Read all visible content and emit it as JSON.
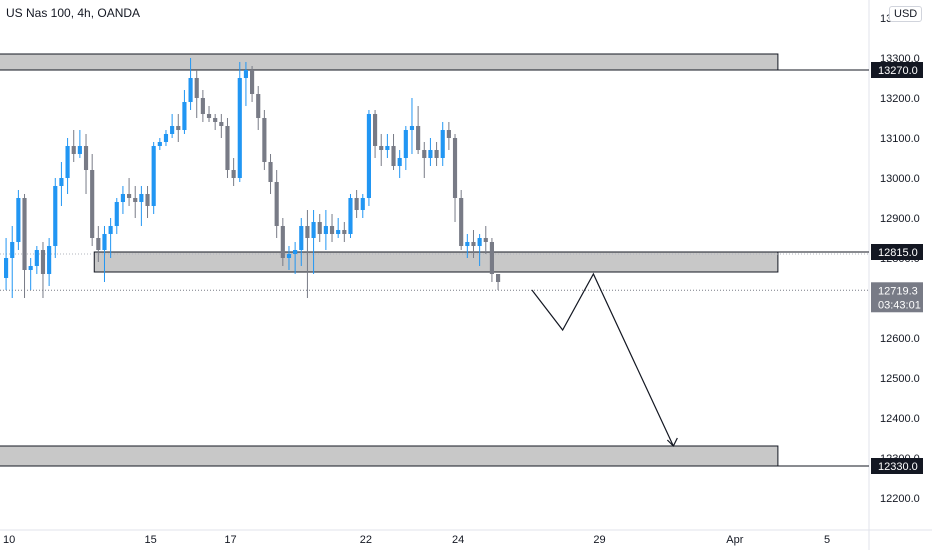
{
  "header": {
    "title": "US Nas 100, 4h, OANDA",
    "currency": "USD"
  },
  "colors": {
    "up": "#2196f3",
    "down": "#787b86",
    "zone_fill": "#c8c8c8",
    "zone_border": "#131722",
    "axis_text": "#131722",
    "last_price_bg": "#787b86"
  },
  "chart_data": {
    "type": "candlestick",
    "symbol": "US Nas 100",
    "interval": "4h",
    "source": "OANDA",
    "ylim": [
      12140,
      13440
    ],
    "y_ticks": [
      13400,
      13300,
      13200,
      13100,
      13000,
      12900,
      12800,
      12700,
      12600,
      12500,
      12400,
      12300,
      12200
    ],
    "y_tick_labels": [
      "13400.0",
      "13300.0",
      "13200.0",
      "13100.0",
      "13000.0",
      "12900.0",
      "12800.0",
      "12700.0",
      "12600.0",
      "12500.0",
      "12400.0",
      "12300.0",
      "12200.0"
    ],
    "x_ticks": [
      {
        "label": "10",
        "bar": 1
      },
      {
        "label": "15",
        "bar": 24
      },
      {
        "label": "17",
        "bar": 37
      },
      {
        "label": "22",
        "bar": 59
      },
      {
        "label": "24",
        "bar": 74
      },
      {
        "label": "29",
        "bar": 97
      },
      {
        "label": "Apr",
        "bar": 119
      },
      {
        "label": "5",
        "bar": 134
      }
    ],
    "candles": [
      [
        12750,
        12850,
        12720,
        12800
      ],
      [
        12800,
        12880,
        12700,
        12840
      ],
      [
        12840,
        12970,
        12820,
        12950
      ],
      [
        12950,
        12960,
        12700,
        12770
      ],
      [
        12770,
        12800,
        12720,
        12780
      ],
      [
        12780,
        12830,
        12760,
        12820
      ],
      [
        12820,
        12840,
        12700,
        12760
      ],
      [
        12760,
        12850,
        12730,
        12830
      ],
      [
        12830,
        13000,
        12800,
        12980
      ],
      [
        12980,
        13040,
        12930,
        13000
      ],
      [
        13000,
        13100,
        12960,
        13080
      ],
      [
        13080,
        13120,
        13040,
        13060
      ],
      [
        13060,
        13120,
        13050,
        13080
      ],
      [
        13080,
        13110,
        12960,
        13020
      ],
      [
        13020,
        13060,
        12830,
        12850
      ],
      [
        12850,
        12880,
        12790,
        12820
      ],
      [
        12820,
        12880,
        12740,
        12860
      ],
      [
        12860,
        12900,
        12800,
        12880
      ],
      [
        12880,
        12950,
        12860,
        12940
      ],
      [
        12940,
        12980,
        12910,
        12960
      ],
      [
        12960,
        13000,
        12930,
        12950
      ],
      [
        12950,
        12980,
        12900,
        12940
      ],
      [
        12940,
        12980,
        12880,
        12960
      ],
      [
        12960,
        12980,
        12900,
        12930
      ],
      [
        12930,
        13090,
        12910,
        13080
      ],
      [
        13080,
        13100,
        13070,
        13090
      ],
      [
        13090,
        13120,
        13080,
        13110
      ],
      [
        13110,
        13160,
        13100,
        13130
      ],
      [
        13130,
        13160,
        13090,
        13120
      ],
      [
        13120,
        13220,
        13110,
        13190
      ],
      [
        13190,
        13300,
        13170,
        13250
      ],
      [
        13250,
        13270,
        13150,
        13200
      ],
      [
        13200,
        13220,
        13140,
        13160
      ],
      [
        13160,
        13180,
        13140,
        13150
      ],
      [
        13150,
        13160,
        13120,
        13140
      ],
      [
        13140,
        13160,
        13100,
        13130
      ],
      [
        13130,
        13150,
        13000,
        13020
      ],
      [
        13020,
        13050,
        12980,
        13000
      ],
      [
        13000,
        13290,
        12990,
        13250
      ],
      [
        13250,
        13290,
        13180,
        13270
      ],
      [
        13270,
        13280,
        13190,
        13210
      ],
      [
        13210,
        13230,
        13120,
        13150
      ],
      [
        13150,
        13170,
        13020,
        13040
      ],
      [
        13040,
        13060,
        12960,
        12990
      ],
      [
        12990,
        13020,
        12850,
        12880
      ],
      [
        12880,
        12900,
        12780,
        12800
      ],
      [
        12800,
        12830,
        12770,
        12810
      ],
      [
        12810,
        12840,
        12760,
        12820
      ],
      [
        12820,
        12900,
        12780,
        12880
      ],
      [
        12880,
        12920,
        12700,
        12850
      ],
      [
        12850,
        12920,
        12760,
        12890
      ],
      [
        12890,
        12910,
        12840,
        12860
      ],
      [
        12860,
        12920,
        12820,
        12880
      ],
      [
        12880,
        12910,
        12840,
        12860
      ],
      [
        12860,
        12900,
        12850,
        12870
      ],
      [
        12870,
        12890,
        12840,
        12860
      ],
      [
        12860,
        12960,
        12850,
        12950
      ],
      [
        12950,
        12970,
        12900,
        12920
      ],
      [
        12920,
        12960,
        12900,
        12950
      ],
      [
        12950,
        13170,
        12930,
        13160
      ],
      [
        13160,
        13170,
        13050,
        13080
      ],
      [
        13080,
        13110,
        13030,
        13070
      ],
      [
        13070,
        13110,
        13050,
        13080
      ],
      [
        13080,
        13110,
        13020,
        13030
      ],
      [
        13030,
        13070,
        13000,
        13050
      ],
      [
        13050,
        13130,
        13020,
        13120
      ],
      [
        13120,
        13200,
        13060,
        13130
      ],
      [
        13130,
        13180,
        13060,
        13070
      ],
      [
        13070,
        13090,
        13000,
        13050
      ],
      [
        13050,
        13100,
        13030,
        13070
      ],
      [
        13070,
        13090,
        13030,
        13050
      ],
      [
        13050,
        13140,
        13030,
        13120
      ],
      [
        13120,
        13140,
        13070,
        13100
      ],
      [
        13100,
        13110,
        12890,
        12950
      ],
      [
        12950,
        12970,
        12820,
        12830
      ],
      [
        12830,
        12860,
        12800,
        12840
      ],
      [
        12840,
        12870,
        12800,
        12830
      ],
      [
        12830,
        12860,
        12780,
        12850
      ],
      [
        12850,
        12880,
        12810,
        12840
      ],
      [
        12840,
        12850,
        12740,
        12760
      ],
      [
        12760,
        12760,
        12720,
        12740
      ]
    ],
    "zones": [
      {
        "top": 13310,
        "bottom": 13270,
        "from_bar": 0,
        "to_bar": 126,
        "label": "13270.0"
      },
      {
        "top": 12815,
        "bottom": 12765,
        "from_bar": 15,
        "to_bar": 126,
        "label": "12815.0"
      },
      {
        "top": 12330,
        "bottom": 12280,
        "from_bar": 0,
        "to_bar": 126,
        "label": "12330.0"
      }
    ],
    "projection": [
      {
        "bar": 86,
        "price": 12720
      },
      {
        "bar": 91,
        "price": 12620
      },
      {
        "bar": 96,
        "price": 12760
      },
      {
        "bar": 109,
        "price": 12330
      }
    ],
    "last_price": {
      "value": 12719.3,
      "label": "12719.3",
      "countdown": "03:43:01"
    },
    "prev_close_line": 12810
  }
}
